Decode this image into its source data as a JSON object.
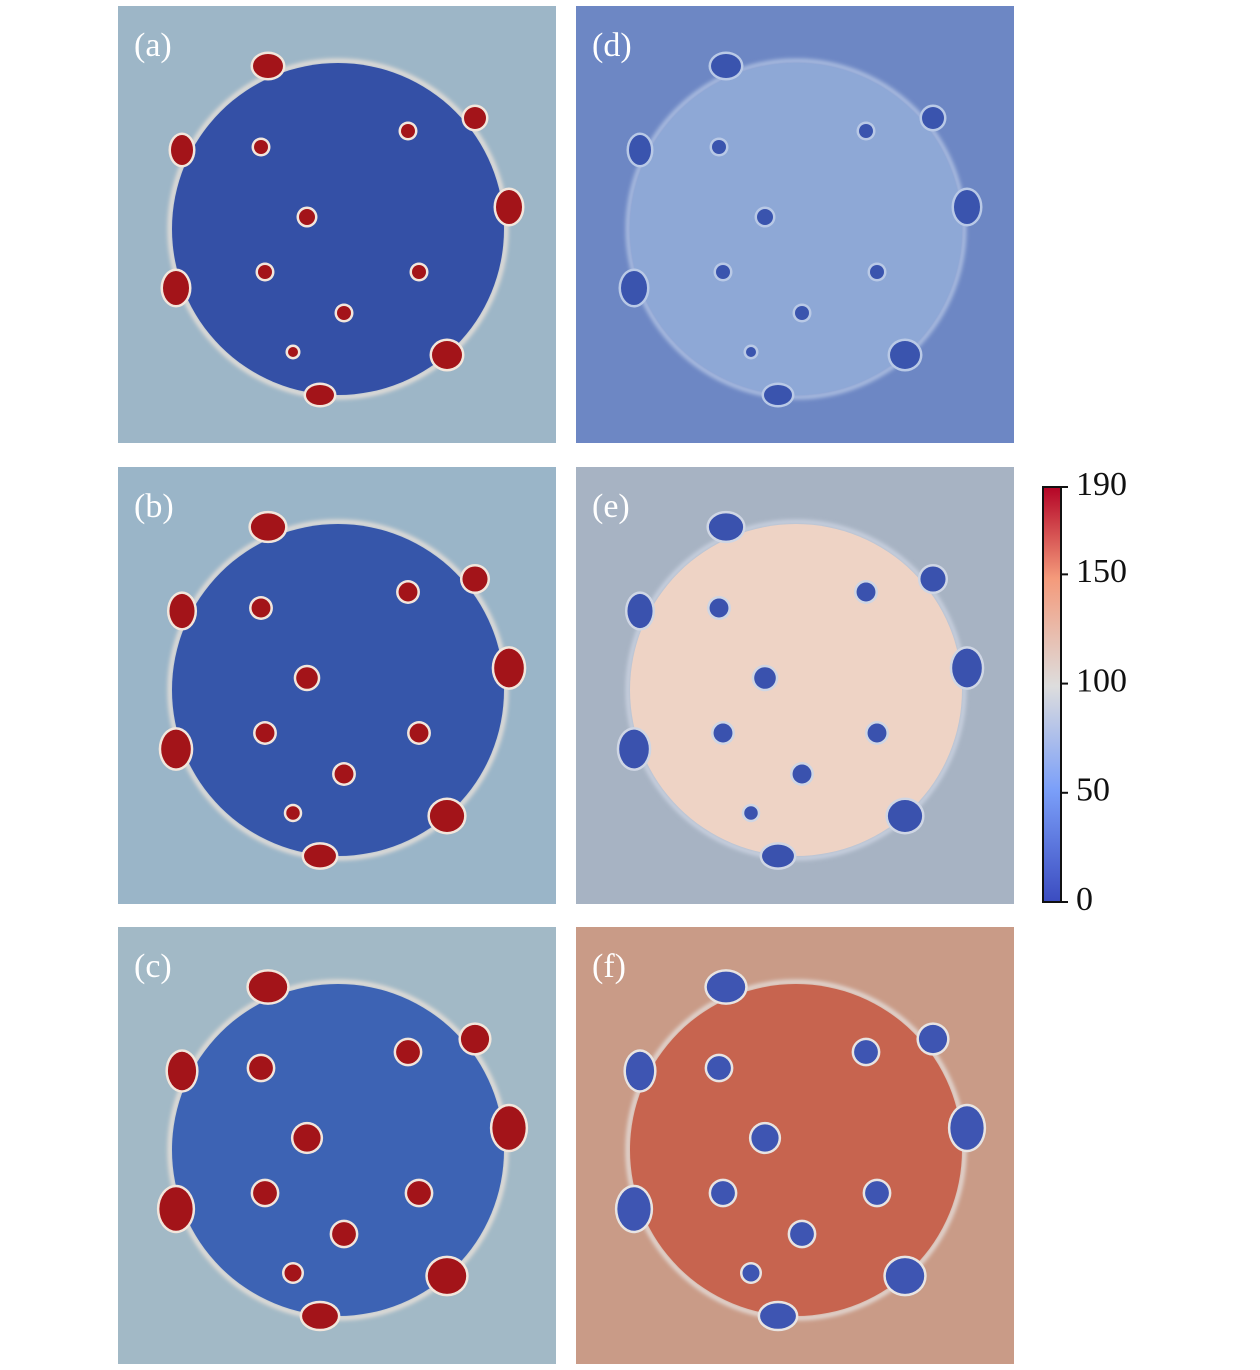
{
  "panels": [
    {
      "label": "(a)"
    },
    {
      "label": "(b)"
    },
    {
      "label": "(c)"
    },
    {
      "label": "(d)"
    },
    {
      "label": "(e)"
    },
    {
      "label": "(f)"
    }
  ],
  "colorbar": {
    "lim": [
      0,
      190
    ],
    "ticks": [
      0,
      50,
      100,
      150,
      190
    ]
  }
}
